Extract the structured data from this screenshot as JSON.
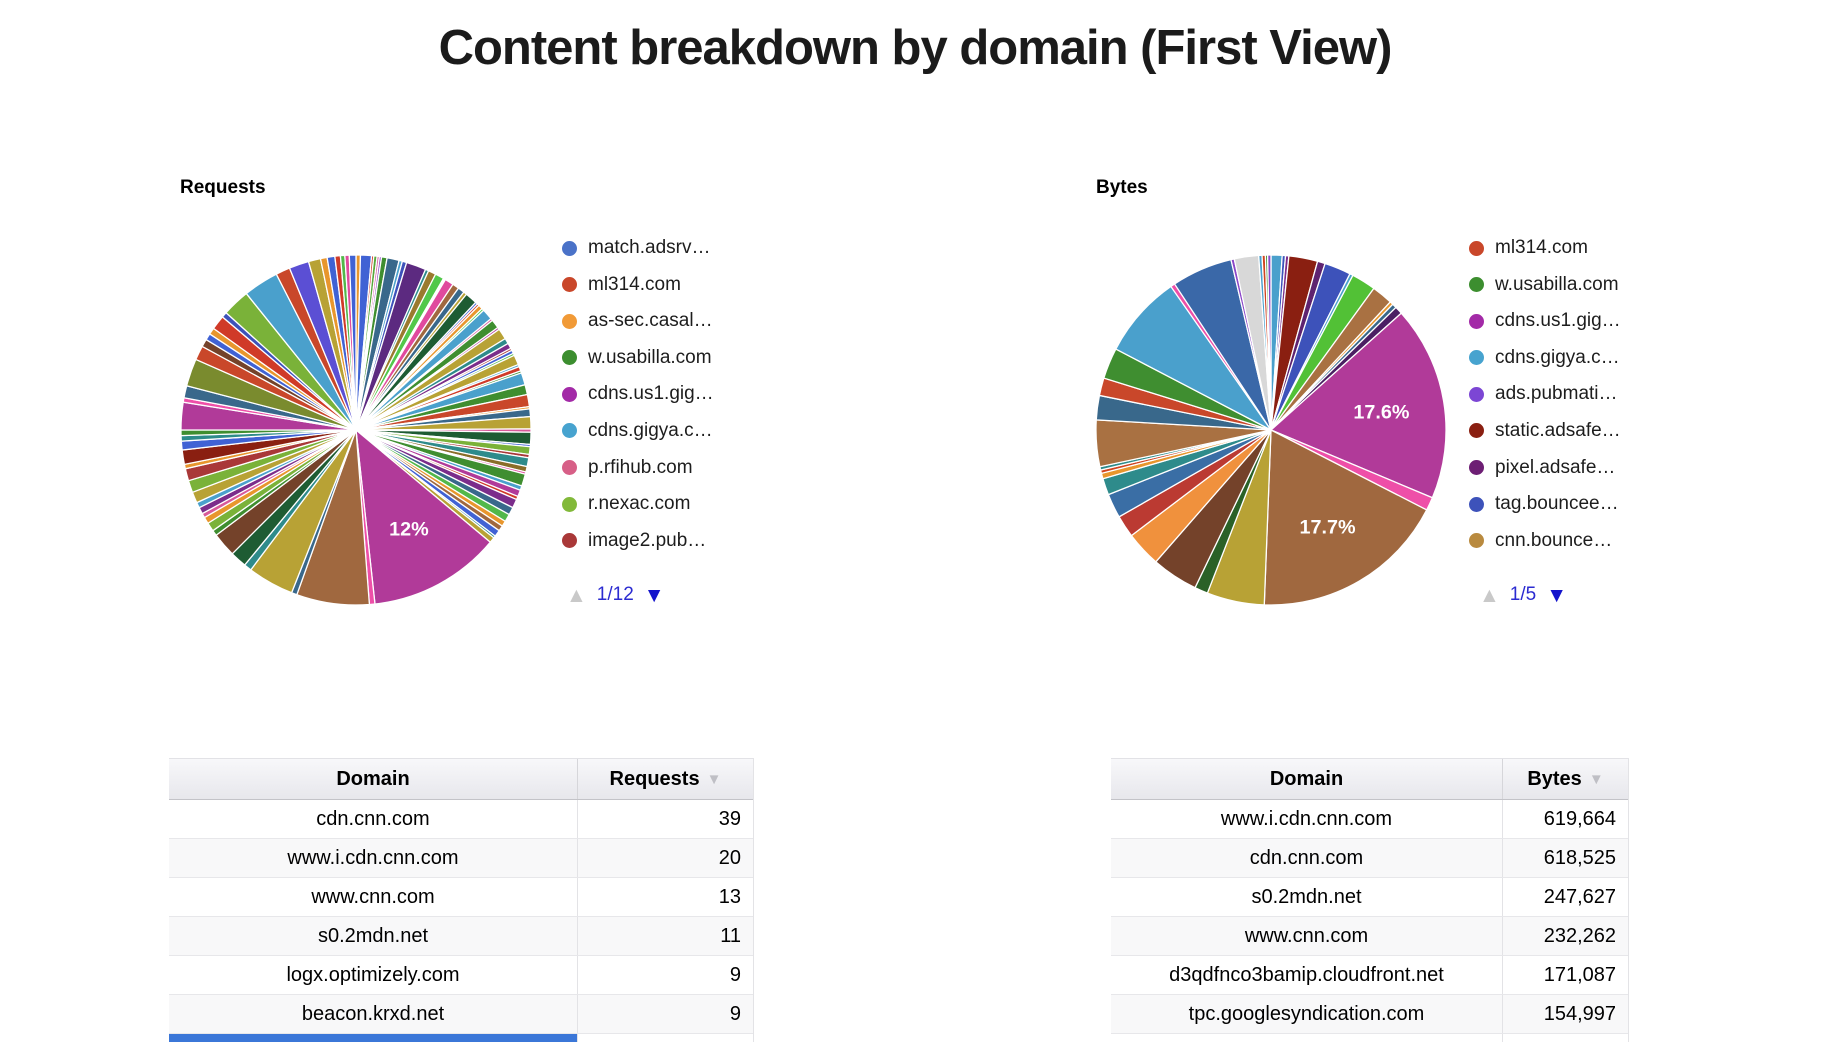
{
  "page_title": "Content breakdown by domain (First View)",
  "left_panel": {
    "chart_label": "Requests",
    "legend": [
      {
        "label": "match.adsrv…",
        "color": "#4a72c8"
      },
      {
        "label": "ml314.com",
        "color": "#c9472a"
      },
      {
        "label": "as-sec.casal…",
        "color": "#f19a37"
      },
      {
        "label": "w.usabilla.com",
        "color": "#3c8e2f"
      },
      {
        "label": "cdns.us1.gig…",
        "color": "#a32aa7"
      },
      {
        "label": "cdns.gigya.c…",
        "color": "#47a3cf"
      },
      {
        "label": "p.rfihub.com",
        "color": "#d75f87"
      },
      {
        "label": "r.nexac.com",
        "color": "#82b93a"
      },
      {
        "label": "image2.pub…",
        "color": "#a93838"
      }
    ],
    "pager": {
      "page": "1/12",
      "up_arrow_color": "#c9c9c9",
      "down_arrow_color": "#1414cc",
      "text_color": "#2b2bd1"
    },
    "table": {
      "columns": [
        "Domain",
        "Requests"
      ],
      "sort_column": "Requests",
      "sort_arrow": "▼",
      "rows": [
        [
          "cdn.cnn.com",
          "39"
        ],
        [
          "www.i.cdn.cnn.com",
          "20"
        ],
        [
          "www.cnn.com",
          "13"
        ],
        [
          "s0.2mdn.net",
          "11"
        ],
        [
          "logx.optimizely.com",
          "9"
        ],
        [
          "beacon.krxd.net",
          "9"
        ]
      ],
      "partial_row_domain_bg": "#3b77d8"
    }
  },
  "right_panel": {
    "chart_label": "Bytes",
    "legend": [
      {
        "label": "ml314.com",
        "color": "#c9472a"
      },
      {
        "label": "w.usabilla.com",
        "color": "#3c8e2f"
      },
      {
        "label": "cdns.us1.gig…",
        "color": "#a32aa7"
      },
      {
        "label": "cdns.gigya.c…",
        "color": "#47a3cf"
      },
      {
        "label": "ads.pubmati…",
        "color": "#7c46d4"
      },
      {
        "label": "static.adsafe…",
        "color": "#8a1f11"
      },
      {
        "label": "pixel.adsafe…",
        "color": "#6d1e74"
      },
      {
        "label": "tag.bouncee…",
        "color": "#3d52ba"
      },
      {
        "label": "cnn.bounce…",
        "color": "#b98a3f"
      }
    ],
    "pager": {
      "page": "1/5",
      "up_arrow_color": "#c9c9c9",
      "down_arrow_color": "#1414cc",
      "text_color": "#2b2bd1"
    },
    "table": {
      "columns": [
        "Domain",
        "Bytes"
      ],
      "sort_column": "Bytes",
      "sort_arrow": "▼",
      "rows": [
        [
          "www.i.cdn.cnn.com",
          "619,664"
        ],
        [
          "cdn.cnn.com",
          "618,525"
        ],
        [
          "s0.2mdn.net",
          "247,627"
        ],
        [
          "www.cnn.com",
          "232,262"
        ],
        [
          "d3qdfnco3bamip.cloudfront.net",
          "171,087"
        ],
        [
          "tpc.googlesyndication.com",
          "154,997"
        ]
      ],
      "partial_row_domain_bg": null
    }
  },
  "chart_data": [
    {
      "type": "pie",
      "title": "Requests",
      "legend_position": "right",
      "legend_page": "1/12",
      "visible_percent_labels": [
        "12%"
      ],
      "note": "slices are [estimated_percent, color, optional_label], clockwise from 12 o'clock",
      "slices": [
        [
          0.4,
          "#e8962d"
        ],
        [
          1.0,
          "#4062d4"
        ],
        [
          0.2,
          "#d03a28"
        ],
        [
          0.3,
          "#58a83c"
        ],
        [
          0.2,
          "#d85a9a"
        ],
        [
          0.2,
          "#8a46c8"
        ],
        [
          0.5,
          "#3f8e30"
        ],
        [
          1.1,
          "#39688b"
        ],
        [
          0.3,
          "#4aa0cc"
        ],
        [
          0.4,
          "#3d52ba"
        ],
        [
          1.8,
          "#5c2a80"
        ],
        [
          0.3,
          "#2e8b8b"
        ],
        [
          0.7,
          "#9a7a2e"
        ],
        [
          0.8,
          "#52c84a"
        ],
        [
          0.2,
          "#ffffff"
        ],
        [
          0.8,
          "#e04a9e"
        ],
        [
          0.6,
          "#a0683f"
        ],
        [
          0.6,
          "#39688b"
        ],
        [
          0.3,
          "#b8a235"
        ],
        [
          1.1,
          "#1e5c33"
        ],
        [
          0.2,
          "#4062d4"
        ],
        [
          0.2,
          "#d03a28"
        ],
        [
          0.4,
          "#e8962d"
        ],
        [
          0.2,
          "#52c84a"
        ],
        [
          1.0,
          "#4aa0cc"
        ],
        [
          0.2,
          "#d85a9a"
        ],
        [
          0.8,
          "#3f8e30"
        ],
        [
          0.2,
          "#b13a99"
        ],
        [
          1.0,
          "#b8a235"
        ],
        [
          0.5,
          "#2e8b8b"
        ],
        [
          0.5,
          "#7b2d8b"
        ],
        [
          0.2,
          "#a93838"
        ],
        [
          0.3,
          "#4062d4"
        ],
        [
          0.2,
          "#52b84a"
        ],
        [
          0.9,
          "#b8a235"
        ],
        [
          0.2,
          "#4aa0cc"
        ],
        [
          0.4,
          "#d03a28"
        ],
        [
          0.2,
          "#3f8e30"
        ],
        [
          1.1,
          "#4aa0cc"
        ],
        [
          0.9,
          "#3f8e30"
        ],
        [
          1.1,
          "#c9472a"
        ],
        [
          0.2,
          "#e8962d"
        ],
        [
          0.7,
          "#39688b"
        ],
        [
          1.1,
          "#b8a235"
        ],
        [
          0.3,
          "#d85a9a"
        ],
        [
          1.1,
          "#1e5c33"
        ],
        [
          0.2,
          "#4062d4"
        ],
        [
          0.7,
          "#7ab239"
        ],
        [
          0.3,
          "#a93838"
        ],
        [
          0.8,
          "#2e8b8b"
        ],
        [
          0.5,
          "#8a6d28"
        ],
        [
          0.2,
          "#e04a9e"
        ],
        [
          1.1,
          "#3f8e30"
        ],
        [
          0.4,
          "#4aa0cc"
        ],
        [
          0.6,
          "#b13a99"
        ],
        [
          0.3,
          "#d03a28"
        ],
        [
          0.8,
          "#7b2d8b"
        ],
        [
          0.7,
          "#39688b"
        ],
        [
          0.7,
          "#52b84a"
        ],
        [
          0.5,
          "#e8962d"
        ],
        [
          0.5,
          "#a0683f"
        ],
        [
          0.6,
          "#4062d4"
        ],
        [
          0.2,
          "#2e8b8b"
        ],
        [
          0.5,
          "#b8a235"
        ],
        [
          12,
          "#b13a99",
          "12%"
        ],
        [
          0.5,
          "#ee4fa8"
        ],
        [
          6.6,
          "#a0683f"
        ],
        [
          0.5,
          "#39688b"
        ],
        [
          4.2,
          "#b8a235"
        ],
        [
          0.7,
          "#2e8b8b"
        ],
        [
          1.5,
          "#1e5c33"
        ],
        [
          2.2,
          "#74422a"
        ],
        [
          0.5,
          "#3f8e30"
        ],
        [
          0.8,
          "#7ab239"
        ],
        [
          0.6,
          "#e8962d"
        ],
        [
          0.4,
          "#d85a9a"
        ],
        [
          0.6,
          "#7b2d8b"
        ],
        [
          0.5,
          "#4aa0cc"
        ],
        [
          1.0,
          "#b8a235"
        ],
        [
          1.1,
          "#7ab239"
        ],
        [
          1.1,
          "#a93838"
        ],
        [
          0.4,
          "#e8962d"
        ],
        [
          1.3,
          "#8a1f11"
        ],
        [
          0.8,
          "#4062d4"
        ],
        [
          0.5,
          "#2e8b8b"
        ],
        [
          0.5,
          "#3f8e30"
        ],
        [
          2.5,
          "#b13a99"
        ],
        [
          0.4,
          "#ee4fa8"
        ],
        [
          1.1,
          "#39688b"
        ],
        [
          2.5,
          "#7a8b2e"
        ],
        [
          1.3,
          "#c9472a"
        ],
        [
          0.7,
          "#74422a"
        ],
        [
          0.6,
          "#4062d4"
        ],
        [
          0.6,
          "#e8962d"
        ],
        [
          1.3,
          "#d03a28"
        ],
        [
          0.5,
          "#3d52ba"
        ],
        [
          2.5,
          "#7ab239"
        ],
        [
          3.2,
          "#4aa0cc"
        ],
        [
          1.3,
          "#c9472a"
        ],
        [
          1.8,
          "#5b4fd4"
        ],
        [
          1.1,
          "#b8a235"
        ],
        [
          0.6,
          "#e8962d"
        ],
        [
          0.7,
          "#4062d4"
        ],
        [
          0.5,
          "#d03a28"
        ],
        [
          0.4,
          "#52b84a"
        ],
        [
          0.4,
          "#e04a9e"
        ],
        [
          0.6,
          "#4062d4"
        ]
      ]
    },
    {
      "type": "pie",
      "title": "Bytes",
      "legend_position": "right",
      "legend_page": "1/5",
      "visible_percent_labels": [
        "17.6%",
        "17.7%"
      ],
      "note": "slices are [estimated_percent, color, optional_label], clockwise from 12 o'clock",
      "slices": [
        [
          1.0,
          "#4aa0cc"
        ],
        [
          0.3,
          "#3d52ba"
        ],
        [
          0.3,
          "#7b2d8b"
        ],
        [
          2.6,
          "#8a1f11"
        ],
        [
          0.7,
          "#5e2370"
        ],
        [
          2.4,
          "#3d52ba"
        ],
        [
          0.3,
          "#4aa0cc"
        ],
        [
          2.2,
          "#52c136"
        ],
        [
          1.9,
          "#a97142"
        ],
        [
          0.3,
          "#e8962d"
        ],
        [
          0.4,
          "#39688b"
        ],
        [
          0.7,
          "#4b1f63"
        ],
        [
          17.6,
          "#b13a99",
          "17.6%"
        ],
        [
          1.2,
          "#ee4fa8"
        ],
        [
          17.7,
          "#a0683f",
          "17.7%"
        ],
        [
          5.2,
          "#b8a235"
        ],
        [
          1.2,
          "#2a6127"
        ],
        [
          4.2,
          "#74422a"
        ],
        [
          3.2,
          "#f0913d"
        ],
        [
          2.0,
          "#bb3a32"
        ],
        [
          2.2,
          "#3a6ea5"
        ],
        [
          1.5,
          "#2e8b8b"
        ],
        [
          0.5,
          "#e8962d"
        ],
        [
          0.3,
          "#d0431f"
        ],
        [
          0.3,
          "#2e8b8b"
        ],
        [
          4.2,
          "#a97142"
        ],
        [
          2.2,
          "#39688b"
        ],
        [
          1.6,
          "#c9472a"
        ],
        [
          2.8,
          "#3f8e30"
        ],
        [
          7.5,
          "#4aa0cc"
        ],
        [
          0.4,
          "#ee4fa8"
        ],
        [
          5.5,
          "#3a68a8"
        ],
        [
          0.3,
          "#8a46c8"
        ],
        [
          2.2,
          "#d8d8d8"
        ],
        [
          0.3,
          "#4aa0cc"
        ],
        [
          0.3,
          "#d0431f"
        ],
        [
          0.2,
          "#3f8e30"
        ],
        [
          0.3,
          "#8a46c8"
        ]
      ]
    }
  ]
}
